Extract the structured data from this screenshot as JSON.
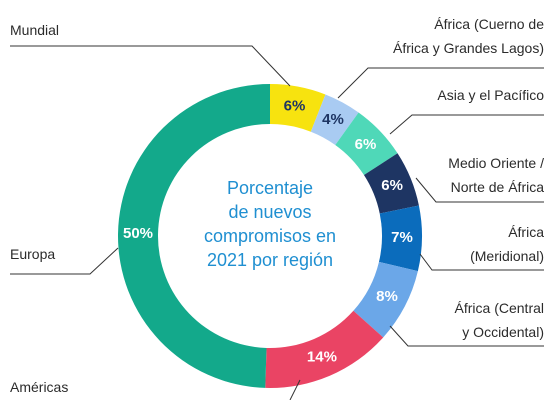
{
  "chart_data": {
    "type": "donut",
    "center_text": "Porcentaje\nde nuevos\ncompromisos en\n2021 por región",
    "categories": [
      "Mundial",
      "África (Cuerno de\nÁfrica y Grandes Lagos)",
      "Asia y el Pacífico",
      "Medio Oriente /\nNorte de África",
      "África\n(Meridional)",
      "África (Central\ny Occidental)",
      "Américas",
      "Europa"
    ],
    "values": [
      6,
      4,
      6,
      6,
      7,
      8,
      14,
      50
    ],
    "value_labels": [
      "6%",
      "4%",
      "6%",
      "6%",
      "7%",
      "8%",
      "14%",
      "50%"
    ],
    "colors": [
      "#f7e30f",
      "#a9cbf2",
      "#4fd8b8",
      "#1e3563",
      "#0b6cbc",
      "#6ba7e8",
      "#ea4464",
      "#13a98b"
    ],
    "label_colors": [
      "#1e3563",
      "#1e3563",
      "#ffffff",
      "#ffffff",
      "#ffffff",
      "#ffffff",
      "#ffffff",
      "#ffffff"
    ]
  }
}
